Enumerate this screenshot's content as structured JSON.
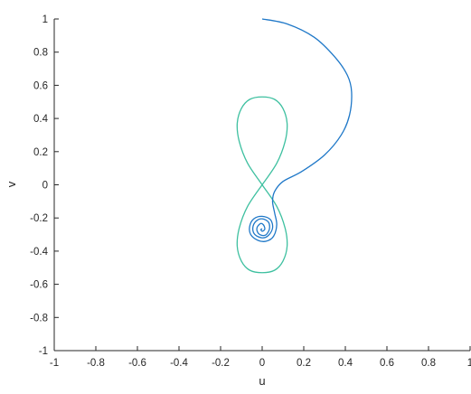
{
  "chart_data": {
    "type": "line",
    "title": "",
    "xlabel": "u",
    "ylabel": "v",
    "xlim": [
      -1,
      1
    ],
    "ylim": [
      -1,
      1
    ],
    "xticks": [
      -1,
      -0.8,
      -0.6,
      -0.4,
      -0.2,
      0,
      0.2,
      0.4,
      0.6,
      0.8,
      1
    ],
    "yticks": [
      -1,
      -0.8,
      -0.6,
      -0.4,
      -0.2,
      0,
      0.2,
      0.4,
      0.6,
      0.8,
      1
    ],
    "xtick_labels": [
      "-1",
      "-0.8",
      "-0.6",
      "-0.4",
      "-0.2",
      "0",
      "0.2",
      "0.4",
      "0.6",
      "0.8",
      "1"
    ],
    "ytick_labels": [
      "-1",
      "-0.8",
      "-0.6",
      "-0.4",
      "-0.2",
      "0",
      "0.2",
      "0.4",
      "0.6",
      "0.8",
      "1"
    ],
    "grid": false,
    "box": "open-top-right",
    "series": [
      {
        "color": "#3ec0a0",
        "x": [
          0,
          0.07,
          0.11,
          0.12,
          0.1,
          0.06,
          0,
          -0.06,
          -0.1,
          -0.12,
          -0.11,
          -0.07,
          0,
          0.07,
          0.11,
          0.12,
          0.1,
          0.06,
          0,
          -0.06,
          -0.1,
          -0.12,
          -0.11,
          -0.07,
          0
        ],
        "y": [
          0,
          0.13,
          0.26,
          0.37,
          0.46,
          0.515,
          0.53,
          0.515,
          0.46,
          0.37,
          0.26,
          0.13,
          0,
          -0.13,
          -0.26,
          -0.37,
          -0.46,
          -0.515,
          -0.53,
          -0.515,
          -0.46,
          -0.37,
          -0.26,
          -0.13,
          0
        ]
      },
      {
        "color": "#1f78c8",
        "x": [
          0,
          0.12,
          0.25,
          0.35,
          0.41,
          0.43,
          0.42,
          0.38,
          0.3,
          0.19,
          0.1,
          0.06,
          0.05,
          0.06,
          0.07,
          0.055,
          0.02,
          -0.02,
          -0.055,
          -0.06,
          -0.04,
          0,
          0.04,
          0.05,
          0.03,
          0,
          -0.035,
          -0.045,
          -0.03,
          0,
          0.03,
          0.035,
          0.02,
          0,
          -0.02,
          -0.025,
          -0.01,
          0,
          0.01,
          0.012,
          0,
          -0.006,
          0
        ],
        "y": [
          1,
          0.97,
          0.89,
          0.77,
          0.66,
          0.56,
          0.42,
          0.3,
          0.18,
          0.08,
          0.02,
          -0.04,
          -0.1,
          -0.17,
          -0.24,
          -0.31,
          -0.34,
          -0.335,
          -0.3,
          -0.25,
          -0.205,
          -0.19,
          -0.21,
          -0.26,
          -0.305,
          -0.32,
          -0.3,
          -0.26,
          -0.22,
          -0.205,
          -0.225,
          -0.265,
          -0.3,
          -0.305,
          -0.29,
          -0.26,
          -0.235,
          -0.235,
          -0.25,
          -0.27,
          -0.28,
          -0.27,
          -0.265
        ]
      }
    ]
  }
}
